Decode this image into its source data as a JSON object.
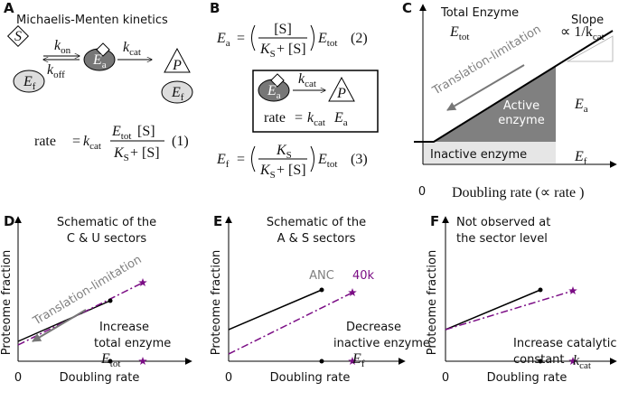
{
  "panel_a": {
    "letter": "A",
    "title": "Michaelis-Menten kinetics",
    "substrate": "S",
    "k_on": {
      "base": "k",
      "sub": "on"
    },
    "k_off": {
      "base": "k",
      "sub": "off"
    },
    "enzyme_active": {
      "base": "E",
      "sub": "a"
    },
    "k_cat": {
      "base": "k",
      "sub": "cat"
    },
    "product": "P",
    "enzyme_free_left": {
      "base": "E",
      "sub": "f"
    },
    "enzyme_free_right": {
      "base": "E",
      "sub": "f"
    },
    "equation": {
      "lhs": "rate",
      "equals": "=",
      "rate_constant": {
        "base": "k",
        "sub": "cat"
      },
      "numerator_enzyme": {
        "base": "E",
        "sub": "tot"
      },
      "numerator_substrate": "[S]",
      "denominator_constant": {
        "base": "K",
        "sub": "S"
      },
      "denominator_rest": "+ [S]",
      "number": "(1)"
    }
  },
  "panel_b": {
    "letter": "B",
    "equation_active": {
      "lhs": {
        "base": "E",
        "sub": "a"
      },
      "equals": "=",
      "numerator": "[S]",
      "denominator_constant": {
        "base": "K",
        "sub": "S"
      },
      "denominator_rest": "+ [S]",
      "total": {
        "base": "E",
        "sub": "tot"
      },
      "number": "(2)"
    },
    "box": {
      "enzyme": {
        "base": "E",
        "sub": "a"
      },
      "k_cat": {
        "base": "k",
        "sub": "cat"
      },
      "product": "P",
      "rate_lhs": "rate",
      "equals": "=",
      "rate_constant": {
        "base": "k",
        "sub": "cat"
      },
      "rate_enzyme": {
        "base": "E",
        "sub": "a"
      }
    },
    "equation_free": {
      "lhs": {
        "base": "E",
        "sub": "f"
      },
      "equals": "=",
      "numerator": {
        "base": "K",
        "sub": "S"
      },
      "denominator_constant": {
        "base": "K",
        "sub": "S"
      },
      "denominator_rest": "+ [S]",
      "total": {
        "base": "E",
        "sub": "tot"
      },
      "number": "(3)"
    }
  },
  "panel_c": {
    "letter": "C",
    "title": "Total Enzyme",
    "total": {
      "base": "E",
      "sub": "tot"
    },
    "slope_label": "Slope",
    "slope_value": {
      "base": "∝ 1/k",
      "sub": "cat"
    },
    "arrow_label": "Translation-limitation",
    "active_region": [
      "Active",
      "enzyme"
    ],
    "active_symbol": {
      "base": "E",
      "sub": "a"
    },
    "inactive_region": "Inactive enzyme",
    "inactive_symbol": {
      "base": "E",
      "sub": "f"
    },
    "x_origin": "0",
    "x_label": "Doubling rate (∝ rate )"
  },
  "panel_d": {
    "letter": "D",
    "title": [
      "Schematic of the",
      "C & U sectors"
    ],
    "arrow_label": "Translation-limitation",
    "annotation": [
      "Increase",
      "total enzyme"
    ],
    "annotation_symbol": {
      "base": "E",
      "sub": "tot"
    },
    "y_label": "Proteome fraction",
    "x_origin": "0",
    "x_label": "Doubling rate"
  },
  "panel_e": {
    "letter": "E",
    "title": [
      "Schematic of the",
      "A & S sectors"
    ],
    "series_black": "ANC",
    "series_purple": "40k",
    "annotation": [
      "Decrease",
      "inactive enzyme"
    ],
    "annotation_symbol": {
      "base": "E",
      "sub": "f"
    },
    "y_label": "Proteome fraction",
    "x_origin": "0",
    "x_label": "Doubling rate"
  },
  "panel_f": {
    "letter": "F",
    "title": [
      "Not observed at",
      "the sector level"
    ],
    "annotation": [
      "Increase catalytic",
      "constant"
    ],
    "annotation_symbol": {
      "base": "k",
      "sub": "cat"
    },
    "y_label": "Proteome fraction",
    "x_origin": "0",
    "x_label": "Doubling rate"
  }
}
